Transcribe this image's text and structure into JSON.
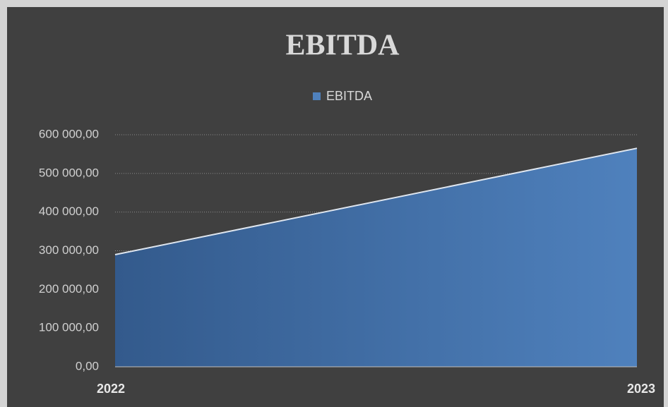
{
  "chart_data": {
    "type": "area",
    "title": "EBITDA",
    "categories": [
      "2022",
      "2023"
    ],
    "series": [
      {
        "name": "EBITDA",
        "color": "#4f81bd",
        "values": [
          290000,
          565000
        ]
      }
    ],
    "ylim": [
      0,
      600000
    ],
    "yticks": [
      {
        "value": 0,
        "label": "0,00"
      },
      {
        "value": 100000,
        "label": "100 000,00"
      },
      {
        "value": 200000,
        "label": "200 000,00"
      },
      {
        "value": 300000,
        "label": "300 000,00"
      },
      {
        "value": 400000,
        "label": "400 000,00"
      },
      {
        "value": 500000,
        "label": "500 000,00"
      },
      {
        "value": 600000,
        "label": "600 000,00"
      }
    ],
    "grid": true,
    "legend": "top"
  }
}
